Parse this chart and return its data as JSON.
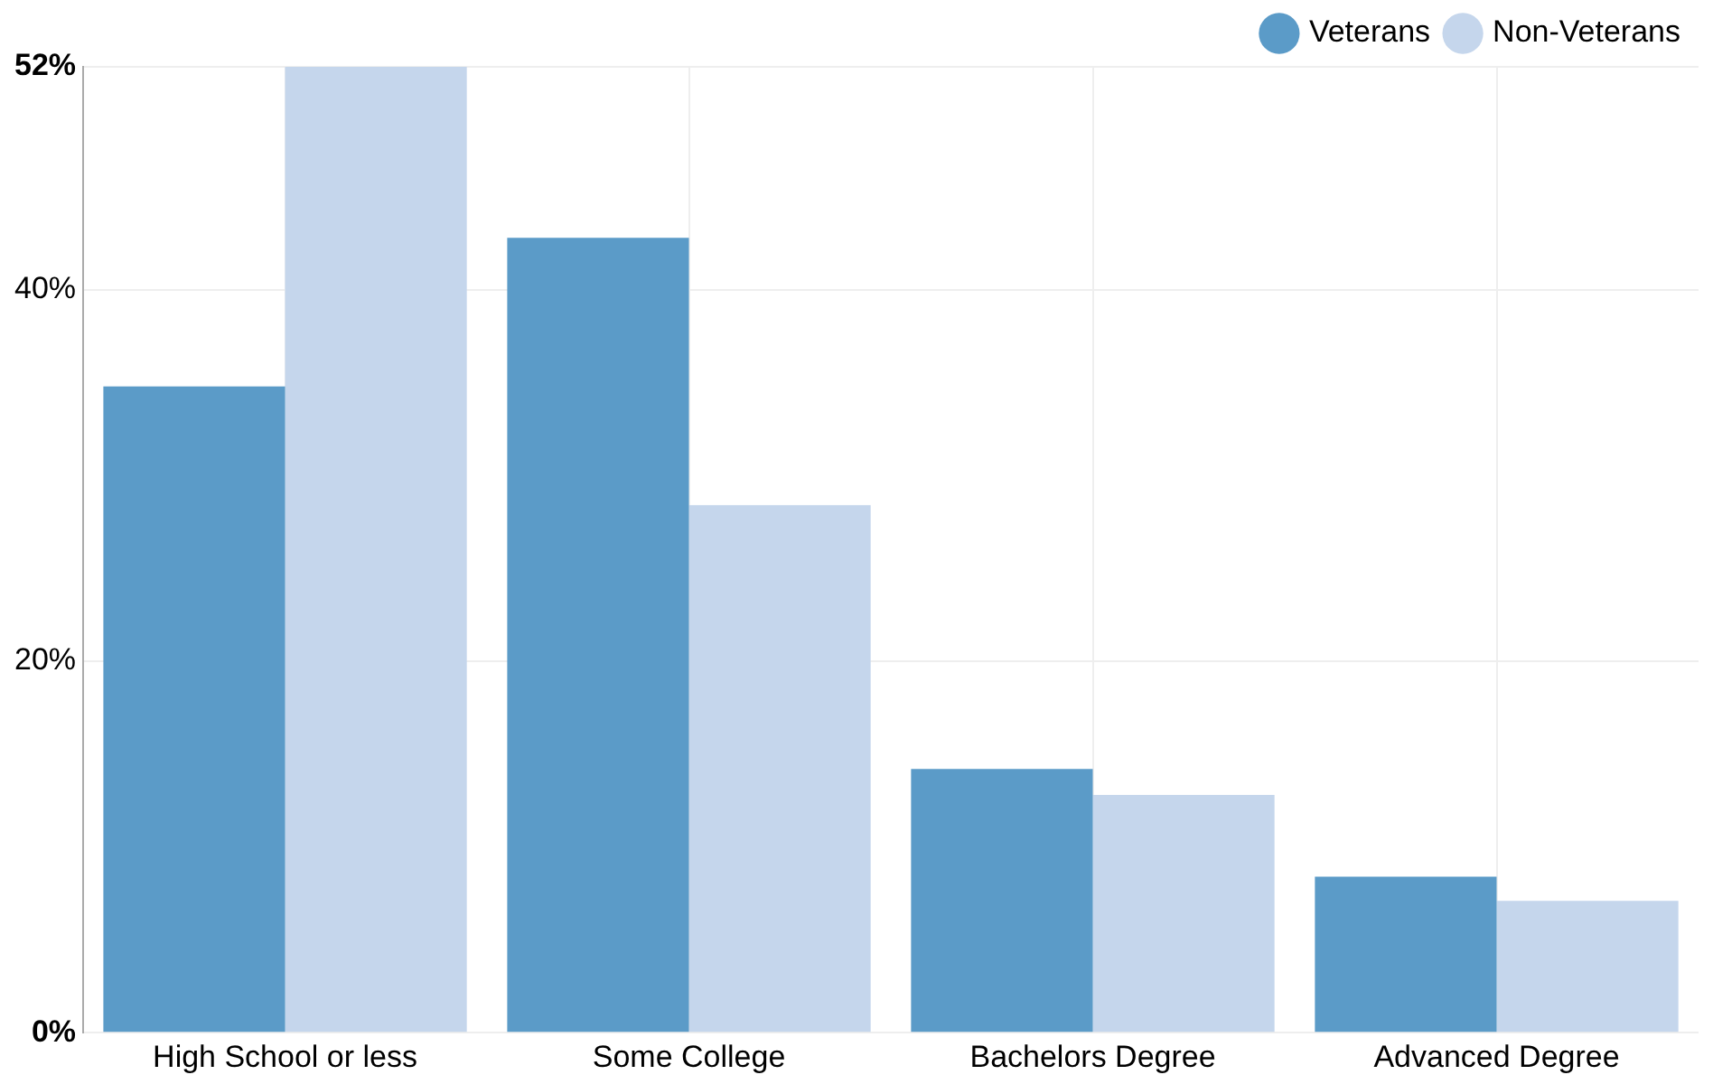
{
  "chart_data": {
    "type": "bar",
    "categories": [
      "High School or less",
      "Some College",
      "Bachelors Degree",
      "Advanced Degree"
    ],
    "series": [
      {
        "name": "Veterans",
        "color": "#5b9bc8",
        "values": [
          34.8,
          42.8,
          14.2,
          8.4
        ]
      },
      {
        "name": "Non-Veterans",
        "color": "#c5d6ec",
        "values": [
          52,
          28.4,
          12.8,
          7.1
        ]
      }
    ],
    "ylim": [
      0,
      52
    ],
    "yticks": [
      {
        "value": 0,
        "label": "0%"
      },
      {
        "value": 20,
        "label": "20%"
      },
      {
        "value": 40,
        "label": "40%"
      },
      {
        "value": 52,
        "label": "52%"
      }
    ],
    "grid": true,
    "legend": "top right"
  }
}
